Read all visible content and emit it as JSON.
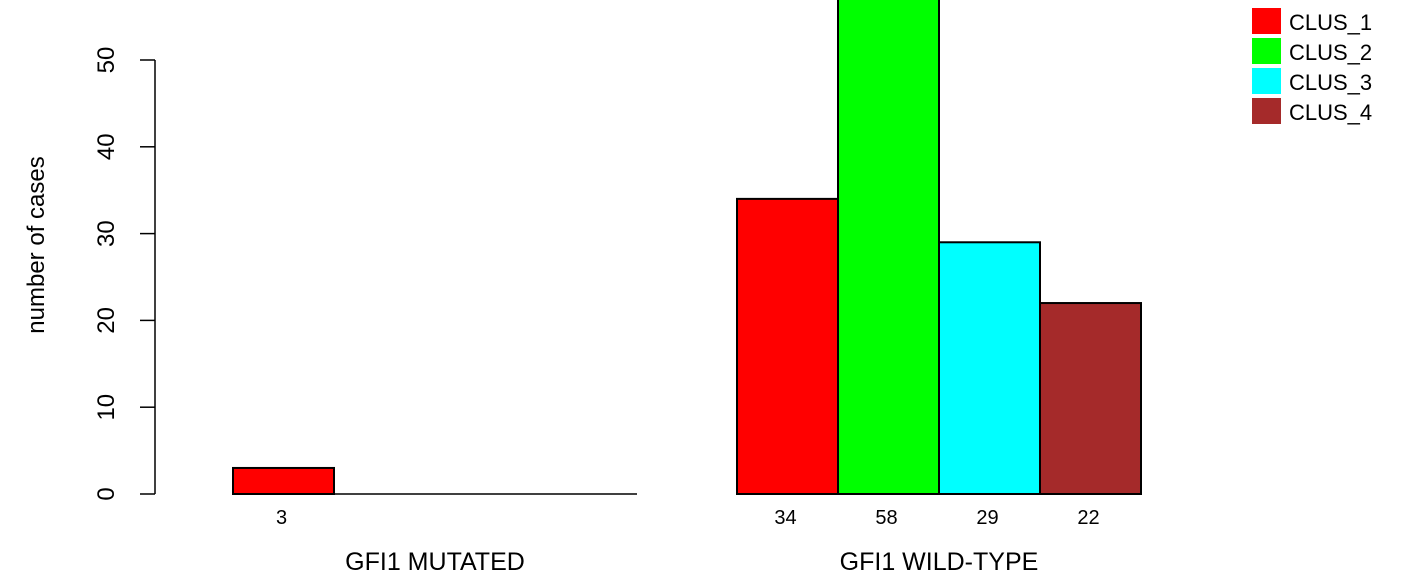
{
  "chart_data": {
    "type": "bar",
    "ylabel": "number of cases",
    "ylim": [
      0,
      57
    ],
    "yticks": [
      0,
      10,
      20,
      30,
      40,
      50
    ],
    "groups": [
      {
        "label": "GFI1 MUTATED",
        "values": [
          3,
          0,
          0,
          0
        ],
        "value_labels": [
          "3",
          "",
          "",
          ""
        ]
      },
      {
        "label": "GFI1 WILD-TYPE",
        "values": [
          34,
          58,
          29,
          22
        ],
        "value_labels": [
          "34",
          "58",
          "29",
          "22"
        ]
      }
    ],
    "series": [
      {
        "name": "CLUS_1",
        "color": "#ff0000"
      },
      {
        "name": "CLUS_2",
        "color": "#00ff00"
      },
      {
        "name": "CLUS_3",
        "color": "#00ffff"
      },
      {
        "name": "CLUS_4",
        "color": "#a52a2a"
      }
    ],
    "legend_position": "top-right",
    "grid": false
  }
}
